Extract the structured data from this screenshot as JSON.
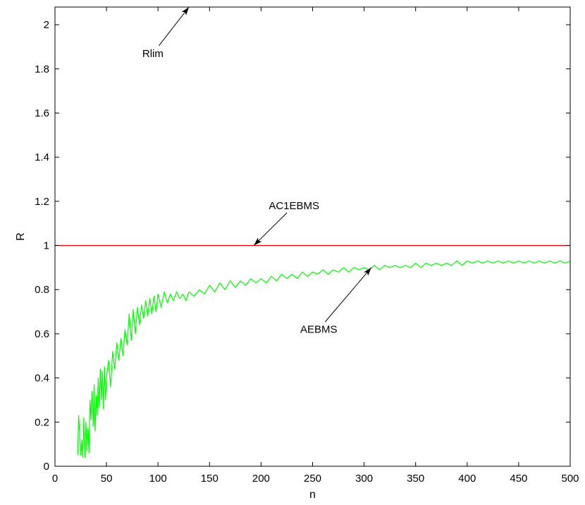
{
  "chart_data": {
    "type": "line",
    "title": "",
    "xlabel": "n",
    "ylabel": "R",
    "xlim": [
      0,
      500
    ],
    "ylim": [
      0,
      2.08
    ],
    "x_ticks": [
      0,
      50,
      100,
      150,
      200,
      250,
      300,
      350,
      400,
      450,
      500
    ],
    "y_ticks": [
      0,
      0.2,
      0.4,
      0.6,
      0.8,
      1,
      1.2,
      1.4,
      1.6,
      1.8,
      2
    ],
    "y_tick_labels": [
      "0",
      "0.2",
      "0.4",
      "0.6",
      "0.8",
      "1",
      "1.2",
      "1.4",
      "1.6",
      "1.8",
      "2"
    ],
    "grid": false,
    "series": [
      {
        "color": "#ff0000",
        "x": [
          0,
          500
        ],
        "y": [
          1,
          1
        ]
      },
      {
        "color": "#00ff00",
        "x": [
          22,
          23,
          25,
          26,
          27,
          28,
          29,
          30,
          31,
          32,
          33,
          34,
          35,
          36,
          37,
          38,
          39,
          40,
          41,
          42,
          43,
          44,
          45,
          46,
          47,
          48,
          49,
          50,
          52,
          54,
          56,
          58,
          60,
          62,
          64,
          66,
          68,
          70,
          72,
          74,
          76,
          78,
          80,
          82,
          84,
          86,
          88,
          90,
          92,
          94,
          96,
          98,
          100,
          103,
          106,
          109,
          112,
          115,
          118,
          121,
          124,
          127,
          130,
          135,
          140,
          145,
          150,
          155,
          160,
          165,
          170,
          175,
          180,
          185,
          190,
          195,
          200,
          205,
          210,
          215,
          220,
          225,
          230,
          235,
          240,
          245,
          250,
          255,
          260,
          265,
          270,
          275,
          280,
          285,
          290,
          295,
          300,
          305,
          310,
          315,
          320,
          325,
          330,
          335,
          340,
          345,
          350,
          355,
          360,
          365,
          370,
          375,
          380,
          385,
          390,
          395,
          400,
          405,
          410,
          415,
          420,
          425,
          430,
          435,
          440,
          445,
          450,
          455,
          460,
          465,
          470,
          475,
          480,
          485,
          490,
          495,
          500
        ],
        "y": [
          0.05,
          0.23,
          0.05,
          0.12,
          0.04,
          0.22,
          0.04,
          0.2,
          0.07,
          0.17,
          0.06,
          0.3,
          0.21,
          0.34,
          0.18,
          0.37,
          0.16,
          0.32,
          0.23,
          0.4,
          0.27,
          0.44,
          0.3,
          0.43,
          0.26,
          0.45,
          0.3,
          0.4,
          0.48,
          0.36,
          0.52,
          0.44,
          0.56,
          0.48,
          0.58,
          0.5,
          0.62,
          0.55,
          0.69,
          0.57,
          0.71,
          0.6,
          0.72,
          0.64,
          0.73,
          0.67,
          0.75,
          0.68,
          0.76,
          0.69,
          0.77,
          0.7,
          0.78,
          0.72,
          0.79,
          0.74,
          0.78,
          0.75,
          0.79,
          0.76,
          0.78,
          0.75,
          0.79,
          0.77,
          0.8,
          0.78,
          0.82,
          0.79,
          0.83,
          0.8,
          0.84,
          0.81,
          0.84,
          0.82,
          0.85,
          0.83,
          0.85,
          0.83,
          0.86,
          0.84,
          0.87,
          0.85,
          0.87,
          0.85,
          0.88,
          0.86,
          0.88,
          0.87,
          0.89,
          0.87,
          0.89,
          0.88,
          0.9,
          0.88,
          0.9,
          0.89,
          0.9,
          0.89,
          0.91,
          0.89,
          0.91,
          0.9,
          0.91,
          0.9,
          0.91,
          0.9,
          0.92,
          0.9,
          0.92,
          0.91,
          0.92,
          0.91,
          0.92,
          0.91,
          0.93,
          0.91,
          0.93,
          0.92,
          0.93,
          0.92,
          0.93,
          0.92,
          0.93,
          0.92,
          0.93,
          0.92,
          0.93,
          0.92,
          0.93,
          0.92,
          0.93,
          0.92,
          0.93,
          0.92,
          0.93,
          0.92,
          0.93
        ]
      }
    ],
    "annotations": [
      {
        "text": "Rlim",
        "arrow_to": [
          130,
          2.08
        ],
        "text_at": [
          95,
          1.87
        ]
      },
      {
        "text": "AC1EBMS",
        "arrow_to": [
          193,
          1
        ],
        "text_at": [
          232,
          1.18
        ]
      },
      {
        "text": "AEBMS",
        "arrow_to": [
          307,
          0.9
        ],
        "text_at": [
          256,
          0.62
        ]
      }
    ]
  }
}
